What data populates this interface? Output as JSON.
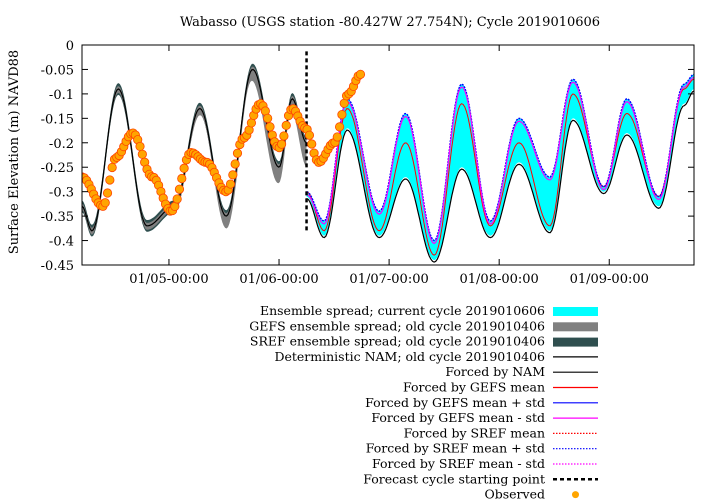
{
  "chart_data": {
    "type": "line",
    "title": "Wabasso (USGS station -80.427W 27.754N); Cycle 2019010606",
    "ylabel": "Surface Elevation (m) NAVD88",
    "xlabel": "",
    "ylim": [
      -0.45,
      0
    ],
    "xlim": [
      -0.79,
      4.77
    ],
    "x_unit": "days from 01/05-00:00",
    "yticks": [
      "0",
      "-0.05",
      "-0.1",
      "-0.15",
      "-0.2",
      "-0.25",
      "-0.3",
      "-0.35",
      "-0.4",
      "-0.45"
    ],
    "xticks": [
      {
        "x": 0,
        "label": "01/05-00:00"
      },
      {
        "x": 1,
        "label": "01/06-00:00"
      },
      {
        "x": 2,
        "label": "01/07-00:00"
      },
      {
        "x": 3,
        "label": "01/08-00:00"
      },
      {
        "x": 4,
        "label": "01/09-00:00"
      }
    ],
    "forecast_start_x": 1.25,
    "grid": false,
    "legend_position": "below",
    "colors": {
      "current_spread": "#00ffff",
      "gefs_old_spread": "#808080",
      "sref_old_spread": "#2f4f4f",
      "nam": "#000000",
      "gefs_mean": "#ff0000",
      "gefs_plus": "#0000ff",
      "gefs_minus": "#ff00ff",
      "observed": "#ffa500",
      "observed_edge": "#ff4500"
    },
    "observed": {
      "x": [
        -0.79,
        -0.6,
        -0.48,
        -0.33,
        -0.15,
        0.02,
        0.2,
        0.34,
        0.52,
        0.68,
        0.83,
        1.0,
        1.12,
        1.24,
        1.36,
        1.5,
        1.63,
        1.74
      ],
      "y": [
        -0.27,
        -0.33,
        -0.23,
        -0.18,
        -0.27,
        -0.34,
        -0.22,
        -0.24,
        -0.3,
        -0.19,
        -0.12,
        -0.21,
        -0.13,
        -0.17,
        -0.24,
        -0.2,
        -0.1,
        -0.06
      ]
    },
    "nam_old": {
      "x": [
        -0.79,
        -0.7,
        -0.46,
        -0.2,
        0.05,
        0.28,
        0.52,
        0.76,
        1.0,
        1.12,
        1.25
      ],
      "y": [
        -0.33,
        -0.38,
        -0.09,
        -0.37,
        -0.33,
        -0.13,
        -0.35,
        -0.05,
        -0.25,
        -0.11,
        -0.2
      ]
    },
    "current_envelope": {
      "x": [
        1.25,
        1.41,
        1.62,
        1.91,
        2.15,
        2.41,
        2.66,
        2.92,
        3.18,
        3.46,
        3.67,
        3.95,
        4.16,
        4.45,
        4.68,
        4.77
      ],
      "upper": [
        -0.3,
        -0.36,
        -0.11,
        -0.34,
        -0.14,
        -0.4,
        -0.08,
        -0.36,
        -0.15,
        -0.27,
        -0.07,
        -0.29,
        -0.11,
        -0.31,
        -0.08,
        -0.06
      ],
      "lower": [
        -0.31,
        -0.39,
        -0.17,
        -0.39,
        -0.27,
        -0.44,
        -0.25,
        -0.39,
        -0.24,
        -0.38,
        -0.15,
        -0.3,
        -0.18,
        -0.33,
        -0.12,
        -0.09
      ]
    },
    "gefs_mean": {
      "x": [
        1.25,
        1.41,
        1.62,
        1.91,
        2.15,
        2.41,
        2.66,
        2.92,
        3.18,
        3.46,
        3.67,
        3.95,
        4.16,
        4.45,
        4.68,
        4.77
      ],
      "y": [
        -0.3,
        -0.38,
        -0.13,
        -0.38,
        -0.2,
        -0.43,
        -0.12,
        -0.37,
        -0.2,
        -0.37,
        -0.1,
        -0.29,
        -0.14,
        -0.31,
        -0.09,
        -0.07
      ]
    },
    "legend": [
      {
        "label": "Ensemble spread; current cycle 2019010606",
        "style": "band",
        "color": "#00ffff"
      },
      {
        "label": "GEFS ensemble spread; old cycle 2019010406",
        "style": "band",
        "color": "#808080"
      },
      {
        "label": "SREF ensemble spread; old cycle 2019010406",
        "style": "band",
        "color": "#2f4f4f"
      },
      {
        "label": "Deterministic NAM; old cycle 2019010406",
        "style": "line",
        "color": "#000000"
      },
      {
        "label": "Forced by NAM",
        "style": "line",
        "color": "#000000"
      },
      {
        "label": "Forced by GEFS mean",
        "style": "line",
        "color": "#ff0000"
      },
      {
        "label": "Forced by GEFS mean + std",
        "style": "line",
        "color": "#0000ff"
      },
      {
        "label": "Forced by GEFS mean - std",
        "style": "line",
        "color": "#ff00ff"
      },
      {
        "label": "Forced by SREF mean",
        "style": "dotted",
        "color": "#ff0000"
      },
      {
        "label": "Forced by SREF mean + std",
        "style": "dotted",
        "color": "#0000ff"
      },
      {
        "label": "Forced by SREF mean - std",
        "style": "dotted",
        "color": "#ff00ff"
      },
      {
        "label": "Forecast cycle starting point",
        "style": "dashed",
        "color": "#000000"
      },
      {
        "label": "Observed",
        "style": "dot",
        "color": "#ffa500"
      }
    ]
  }
}
